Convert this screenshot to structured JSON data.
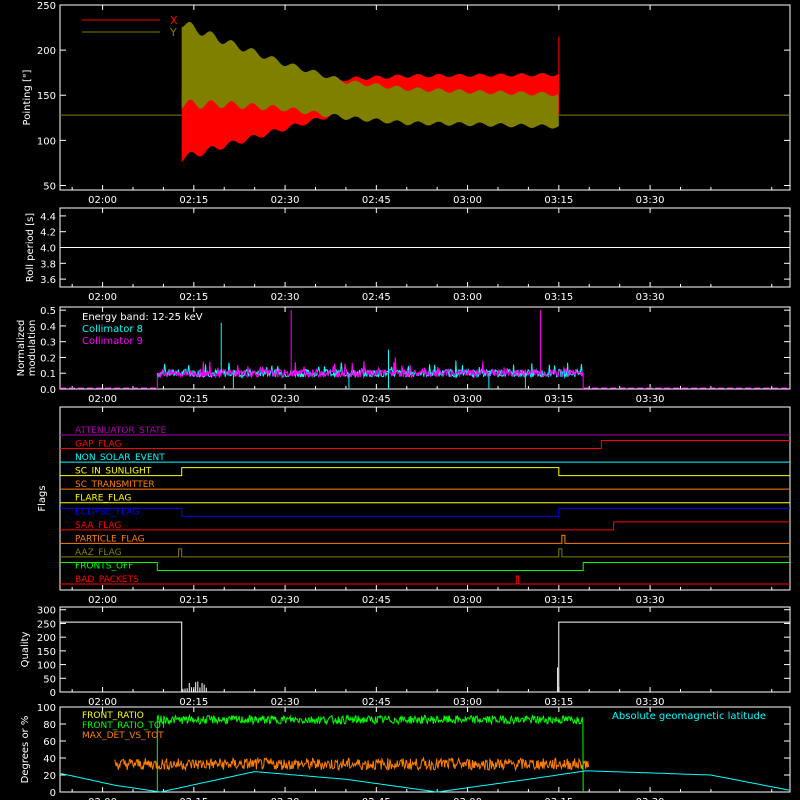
{
  "colors": {
    "background": "#000000",
    "axes": "#ffffff",
    "red": "#ff0000",
    "olive": "#7f7f00",
    "cyan": "#00ffff",
    "magenta": "#ff00ff",
    "green": "#00ff00",
    "orange": "#ff7f00",
    "blue": "#0000ff",
    "yellow": "#ffff00",
    "purple": "#b000b0"
  },
  "time_ticks": [
    "02:00",
    "02:15",
    "02:30",
    "02:45",
    "03:00",
    "03:15",
    "03:30"
  ],
  "chart_data": [
    {
      "id": "pointing",
      "type": "line",
      "ylabel": "Pointing [\"]",
      "ylim": [
        45,
        250
      ],
      "yticks": [
        50,
        100,
        150,
        200,
        250
      ],
      "xrange_minutes": [
        -7,
        113
      ],
      "legend": [
        {
          "name": "X",
          "color": "#ff0000"
        },
        {
          "name": "Y",
          "color": "#7f7f00"
        }
      ],
      "baseline": 128,
      "oscillation": {
        "start_min": 13,
        "end_min": 75,
        "period_min": 3.4
      },
      "series": [
        {
          "name": "X",
          "center": [
            [
              13,
              118
            ],
            [
              20,
              122
            ],
            [
              30,
              135
            ],
            [
              40,
              150
            ],
            [
              50,
              155
            ],
            [
              60,
              157
            ],
            [
              75,
              158
            ]
          ],
          "halfwidth": [
            [
              13,
              38
            ],
            [
              20,
              28
            ],
            [
              30,
              22
            ],
            [
              40,
              18
            ],
            [
              60,
              15
            ],
            [
              75,
              15
            ]
          ]
        },
        {
          "name": "Y",
          "center": [
            [
              13,
              185
            ],
            [
              20,
              175
            ],
            [
              30,
              160
            ],
            [
              40,
              145
            ],
            [
              50,
              138
            ],
            [
              60,
              136
            ],
            [
              75,
              133
            ]
          ],
          "halfwidth": [
            [
              13,
              45
            ],
            [
              20,
              35
            ],
            [
              30,
              25
            ],
            [
              40,
              20
            ],
            [
              60,
              18
            ],
            [
              75,
              18
            ]
          ]
        }
      ]
    },
    {
      "id": "roll",
      "type": "line",
      "ylabel": "Roll period [s]",
      "ylim": [
        3.5,
        4.5
      ],
      "yticks": [
        3.6,
        3.8,
        4.0,
        4.2,
        4.4
      ],
      "xrange_minutes": [
        -7,
        113
      ],
      "series": [
        {
          "name": "roll",
          "x": [
            -7,
            113
          ],
          "y": [
            4.0,
            4.0
          ]
        }
      ]
    },
    {
      "id": "modulation",
      "type": "line",
      "ylabel_lines": [
        "Normalized",
        "modulation"
      ],
      "ylim": [
        0,
        0.52
      ],
      "yticks": [
        0.0,
        0.1,
        0.2,
        0.3,
        0.4,
        0.5
      ],
      "xrange_minutes": [
        -7,
        113
      ],
      "legend_title": "Energy band: 12-25 keV",
      "legend": [
        {
          "name": "Collimator 8",
          "color": "#00ffff"
        },
        {
          "name": "Collimator 9",
          "color": "#ff00ff"
        }
      ],
      "active_range": [
        9,
        79
      ],
      "baseline": 0.1,
      "spikes": [
        {
          "series": "Collimator 8",
          "x": 19.5,
          "y": 0.42
        },
        {
          "series": "Collimator 9",
          "x": 31,
          "y": 0.5
        },
        {
          "series": "Collimator 9",
          "x": 72,
          "y": 0.5
        },
        {
          "series": "Collimator 8",
          "x": 47,
          "y": 0.25
        }
      ],
      "dips": [
        {
          "x": 21.5
        },
        {
          "x": 40.5
        },
        {
          "x": 47
        },
        {
          "x": 63.5
        },
        {
          "x": 69.5
        }
      ]
    },
    {
      "id": "flags",
      "type": "line",
      "ylabel": "Flags",
      "xrange_minutes": [
        -7,
        113
      ],
      "flags": [
        {
          "name": "ATTENUATOR_STATE",
          "color": "#b000b0",
          "segments": [
            [
              -7,
              113,
              0
            ]
          ]
        },
        {
          "name": "GAP_FLAG",
          "color": "#ff0000",
          "segments": [
            [
              -7,
              82,
              0
            ],
            [
              82,
              113,
              1
            ]
          ]
        },
        {
          "name": "NON_SOLAR_EVENT",
          "color": "#00ffff",
          "segments": [
            [
              -7,
              113,
              0
            ]
          ]
        },
        {
          "name": "SC_IN_SUNLIGHT",
          "color": "#ffff00",
          "segments": [
            [
              -7,
              13,
              0
            ],
            [
              13,
              75,
              1
            ],
            [
              75,
              113,
              0
            ]
          ]
        },
        {
          "name": "SC_TRANSMITTER",
          "color": "#ff7f00",
          "segments": [
            [
              -7,
              113,
              0
            ]
          ]
        },
        {
          "name": "FLARE_FLAG",
          "color": "#ffff00",
          "segments": [
            [
              -7,
              113,
              0
            ]
          ]
        },
        {
          "name": "ECLIPSE_FLAG",
          "color": "#0000ff",
          "segments": [
            [
              -7,
              13,
              1
            ],
            [
              13,
              75,
              0
            ],
            [
              75,
              113,
              1
            ]
          ]
        },
        {
          "name": "SAA_FLAG",
          "color": "#ff0000",
          "segments": [
            [
              -7,
              84,
              0
            ],
            [
              84,
              113,
              1
            ]
          ]
        },
        {
          "name": "PARTICLE_FLAG",
          "color": "#ff7f00",
          "segments": [
            [
              -7,
              75.5,
              0
            ],
            [
              75.5,
              76,
              1
            ],
            [
              76,
              113,
              0
            ]
          ]
        },
        {
          "name": "AAZ_FLAG",
          "color": "#7f7f00",
          "segments": [
            [
              -7,
              12.5,
              0
            ],
            [
              12.5,
              13,
              1
            ],
            [
              13,
              75,
              0
            ],
            [
              75,
              75.5,
              1
            ],
            [
              75.5,
              113,
              0
            ]
          ]
        },
        {
          "name": "FRONTS_OFF",
          "color": "#00ff00",
          "segments": [
            [
              -7,
              9,
              1
            ],
            [
              9,
              79,
              0
            ],
            [
              79,
              113,
              1
            ]
          ]
        },
        {
          "name": "BAD_PACKETS",
          "color": "#ff0000",
          "segments": [
            [
              -7,
              68,
              0
            ],
            [
              68,
              68.4,
              1
            ],
            [
              68.4,
              113,
              0
            ]
          ]
        }
      ]
    },
    {
      "id": "quality",
      "type": "line",
      "ylabel": "Quality",
      "ylim": [
        0,
        310
      ],
      "yticks": [
        0,
        50,
        100,
        150,
        200,
        250,
        300
      ],
      "xrange_minutes": [
        -7,
        113
      ],
      "series": [
        {
          "name": "quality",
          "x": [
            -7,
            13,
            13,
            75,
            75,
            113
          ],
          "y": [
            255,
            255,
            0,
            0,
            255,
            255
          ]
        }
      ]
    },
    {
      "id": "geo",
      "type": "line",
      "ylabel": "Degrees or %",
      "ylim": [
        0,
        100
      ],
      "yticks": [
        0,
        20,
        40,
        60,
        80,
        100
      ],
      "xrange_minutes": [
        -7,
        113
      ],
      "legend": [
        {
          "name": "FRONT_RATIO",
          "color": "#ffff00"
        },
        {
          "name": "FRONT_RATIO_TOT",
          "color": "#00ff00"
        },
        {
          "name": "MAX_DET_VS_TOT",
          "color": "#ff7f00"
        }
      ],
      "right_legend": {
        "name": "Absolute geomagnetic latitude",
        "color": "#00ffff"
      },
      "series": [
        {
          "name": "FRONT_RATIO_TOT",
          "range": [
            9,
            79
          ],
          "level": 85
        },
        {
          "name": "MAX_DET_VS_TOT",
          "range": [
            2,
            80
          ],
          "level": 30
        },
        {
          "name": "Absolute geomagnetic latitude",
          "x": [
            -7,
            2,
            9.5,
            25,
            40,
            55,
            70,
            79.5,
            100,
            113
          ],
          "y": [
            22,
            8,
            0,
            24,
            15,
            0,
            15,
            25,
            20,
            2
          ]
        }
      ]
    }
  ]
}
